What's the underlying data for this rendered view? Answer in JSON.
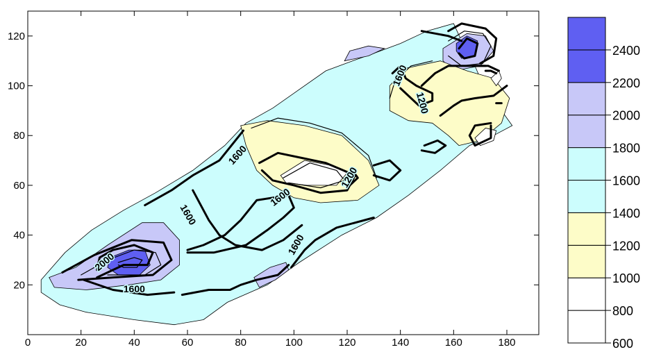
{
  "chart_data": {
    "type": "heatmap",
    "subtype": "filled-contour",
    "title": "",
    "xlabel": "",
    "ylabel": "",
    "xlim": [
      0,
      192
    ],
    "ylim": [
      0,
      130
    ],
    "x_ticks": [
      0,
      20,
      40,
      60,
      80,
      100,
      120,
      140,
      160,
      180
    ],
    "y_ticks": [
      20,
      40,
      60,
      80,
      100,
      120
    ],
    "x_tick_labels": [
      "0",
      "20",
      "40",
      "60",
      "80",
      "100",
      "120",
      "140",
      "160",
      "180"
    ],
    "y_tick_labels": [
      "20",
      "40",
      "60",
      "80",
      "100",
      "120"
    ],
    "grid": false,
    "legend_position": "right",
    "levels": [
      {
        "from": 600,
        "to": 800,
        "color": "#ffffff"
      },
      {
        "from": 800,
        "to": 1000,
        "color": "#ffffff"
      },
      {
        "from": 1000,
        "to": 1200,
        "color": "#fdfcc8"
      },
      {
        "from": 1200,
        "to": 1400,
        "color": "#fdfcc8"
      },
      {
        "from": 1400,
        "to": 1600,
        "color": "#ccfdfd"
      },
      {
        "from": 1600,
        "to": 1800,
        "color": "#ccfdfd"
      },
      {
        "from": 1800,
        "to": 2000,
        "color": "#c8c8f8"
      },
      {
        "from": 2000,
        "to": 2200,
        "color": "#c8c8f8"
      },
      {
        "from": 2200,
        "to": 2400,
        "color": "#5f5ff2"
      },
      {
        "from": 2400,
        "to": 2600,
        "color": "#5f5ff2"
      }
    ],
    "legend_labels": [
      "600",
      "800",
      "1000",
      "1200",
      "1400",
      "1600",
      "1800",
      "2000",
      "2200",
      "2400"
    ],
    "contour_labels": [
      {
        "text": "2000",
        "x": 29,
        "y": 29
      },
      {
        "text": "1600",
        "x": 40,
        "y": 18
      },
      {
        "text": "1600",
        "x": 60,
        "y": 48
      },
      {
        "text": "1600",
        "x": 79,
        "y": 72
      },
      {
        "text": "1600",
        "x": 95,
        "y": 55
      },
      {
        "text": "1600",
        "x": 101,
        "y": 36
      },
      {
        "text": "1200",
        "x": 121,
        "y": 63
      },
      {
        "text": "1600",
        "x": 140,
        "y": 104
      },
      {
        "text": "1200",
        "x": 148,
        "y": 93
      }
    ]
  }
}
